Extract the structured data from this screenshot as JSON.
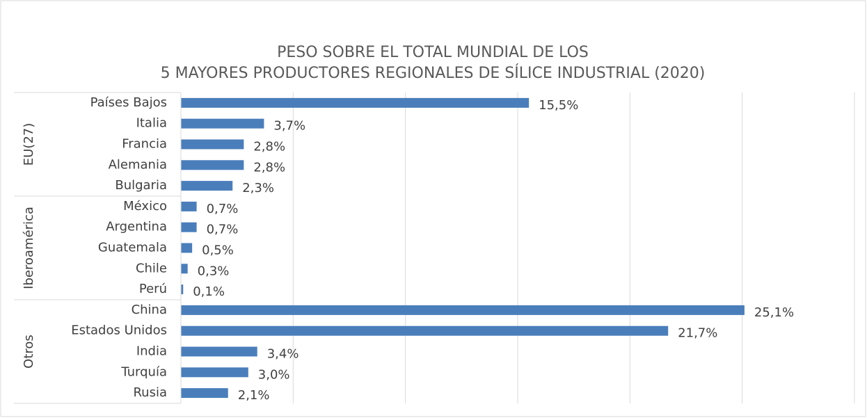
{
  "chart_data": {
    "type": "bar",
    "orientation": "horizontal",
    "title": [
      "PESO SOBRE EL TOTAL MUNDIAL DE LOS",
      "5 MAYORES PRODUCTORES REGIONALES DE SÍLICE INDUSTRIAL (2020)"
    ],
    "color": "#4a7ebb",
    "grid": true,
    "xlim": [
      0,
      30
    ],
    "xticks": [
      0,
      5,
      10,
      15,
      20,
      25,
      30
    ],
    "groups": [
      {
        "name": "EU(27)",
        "categories": [
          "Países Bajos",
          "Italia",
          "Francia",
          "Alemania",
          "Bulgaria"
        ],
        "values": [
          15.5,
          3.7,
          2.8,
          2.8,
          2.3
        ],
        "value_labels": [
          "15,5%",
          "3,7%",
          "2,8%",
          "2,8%",
          "2,3%"
        ]
      },
      {
        "name": "Iberoamérica",
        "categories": [
          "México",
          "Argentina",
          "Guatemala",
          "Chile",
          "Perú"
        ],
        "values": [
          0.7,
          0.7,
          0.5,
          0.3,
          0.1
        ],
        "value_labels": [
          "0,7%",
          "0,7%",
          "0,5%",
          "0,3%",
          "0,1%"
        ]
      },
      {
        "name": "Otros",
        "categories": [
          "China",
          "Estados Unidos",
          "India",
          "Turquía",
          "Rusia"
        ],
        "values": [
          25.1,
          21.7,
          3.4,
          3.0,
          2.1
        ],
        "value_labels": [
          "25,1%",
          "21,7%",
          "3,4%",
          "3,0%",
          "2,1%"
        ]
      }
    ]
  }
}
